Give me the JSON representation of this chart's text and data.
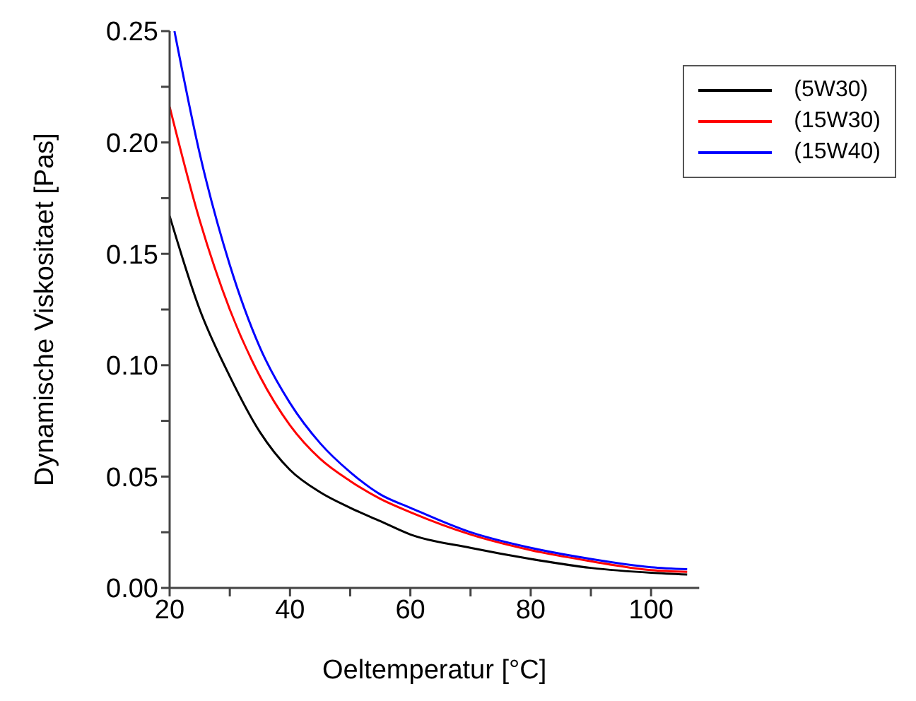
{
  "chart_data": {
    "type": "line",
    "xlabel": "Oeltemperatur [°C]",
    "ylabel": "Dynamische Viskositaet [Pas]",
    "xlim": [
      20,
      108
    ],
    "ylim": [
      0,
      0.25
    ],
    "xticks": [
      20,
      {
        "value": 30,
        "label": null
      },
      40,
      {
        "value": 50,
        "label": null
      },
      60,
      {
        "value": 70,
        "label": null
      },
      80,
      {
        "value": 90,
        "label": null
      },
      100
    ],
    "yticks": [
      {
        "value": 0,
        "label": "0.00"
      },
      {
        "value": 0.025,
        "label": null
      },
      {
        "value": 0.05,
        "label": "0.05"
      },
      {
        "value": 0.075,
        "label": null
      },
      {
        "value": 0.1,
        "label": "0.10"
      },
      {
        "value": 0.125,
        "label": null
      },
      {
        "value": 0.15,
        "label": "0.15"
      },
      {
        "value": 0.175,
        "label": null
      },
      {
        "value": 0.2,
        "label": "0.20"
      },
      {
        "value": 0.225,
        "label": null
      },
      {
        "value": 0.25,
        "label": "0.25"
      }
    ],
    "legend": "top right",
    "grid": false,
    "marker": "none",
    "line_style": "solid",
    "series": [
      {
        "name": "(5W30)",
        "color": "#000000",
        "x": [
          20,
          25,
          30,
          35,
          40,
          45,
          50,
          55,
          60,
          70,
          80,
          90,
          100,
          106
        ],
        "values": [
          0.167,
          0.125,
          0.095,
          0.07,
          0.053,
          0.043,
          0.036,
          0.03,
          0.024,
          0.018,
          0.013,
          0.009,
          0.0068,
          0.006
        ]
      },
      {
        "name": "(15W30)",
        "color": "#ff0000",
        "x": [
          20,
          25,
          30,
          35,
          40,
          45,
          50,
          55,
          60,
          70,
          80,
          90,
          100,
          106
        ],
        "values": [
          0.216,
          0.165,
          0.125,
          0.095,
          0.073,
          0.058,
          0.048,
          0.04,
          0.034,
          0.024,
          0.017,
          0.012,
          0.008,
          0.0072
        ]
      },
      {
        "name": "(15W40)",
        "color": "#0000ff",
        "x": [
          20.8,
          25,
          30,
          35,
          40,
          45,
          50,
          55,
          60,
          70,
          80,
          90,
          100,
          106
        ],
        "values": [
          0.25,
          0.195,
          0.145,
          0.108,
          0.083,
          0.065,
          0.052,
          0.042,
          0.036,
          0.025,
          0.018,
          0.013,
          0.0093,
          0.0084
        ]
      }
    ]
  }
}
